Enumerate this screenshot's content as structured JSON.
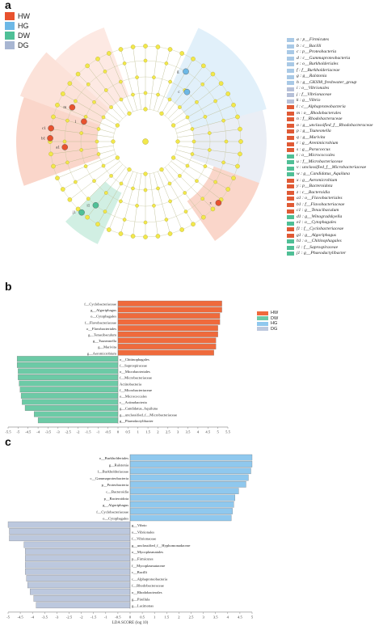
{
  "panels": {
    "a": "a",
    "b": "b",
    "c": "c"
  },
  "groups": [
    {
      "name": "HW",
      "color": "#e8522e"
    },
    {
      "name": "HG",
      "color": "#6db8e6"
    },
    {
      "name": "DW",
      "color": "#4fc097"
    },
    {
      "name": "DG",
      "color": "#a8b6d2"
    }
  ],
  "taxa_legend": [
    {
      "label": "a : p__Firmicutes",
      "color": "#a9c9e6"
    },
    {
      "label": "b : c__Bacilli",
      "color": "#a9c9e6"
    },
    {
      "label": "c : p__Proteobacteria",
      "color": "#a9c9e6"
    },
    {
      "label": "d : c__Gammaproteobacteria",
      "color": "#a9c9e6"
    },
    {
      "label": "e : o__Burkholderiales",
      "color": "#a9c9e6"
    },
    {
      "label": "f : f__Burkholderiaceae",
      "color": "#a9c9e6"
    },
    {
      "label": "g : g__Ralstonia",
      "color": "#a9c9e6"
    },
    {
      "label": "h : g__GKS98_freshwater_group",
      "color": "#a9c9e6"
    },
    {
      "label": "i : o__Vibrionales",
      "color": "#b6c0d8"
    },
    {
      "label": "j : f__Vibrionaceae",
      "color": "#b6c0d8"
    },
    {
      "label": "k : g__Vibrio",
      "color": "#b6c0d8"
    },
    {
      "label": "l : c__Alphaproteobacteria",
      "color": "#e05a35"
    },
    {
      "label": "m : o__Rhodobacterales",
      "color": "#e05a35"
    },
    {
      "label": "n : f__Rhodobacteraceae",
      "color": "#e05a35"
    },
    {
      "label": "o : g__unclassified_f__Rhodobacteraceae",
      "color": "#e05a35"
    },
    {
      "label": "p : g__Tsuneonella",
      "color": "#e05a35"
    },
    {
      "label": "q : g__Marivita",
      "color": "#e05a35"
    },
    {
      "label": "r : g__Arenimicrobium",
      "color": "#e05a35"
    },
    {
      "label": "s : g__Paracoccus",
      "color": "#e05a35"
    },
    {
      "label": "t : o__Micrococcales",
      "color": "#4fbf96"
    },
    {
      "label": "u : f__Microbacteriaceae",
      "color": "#4fbf96"
    },
    {
      "label": "v : unclassified_f__Microbacteriaceae",
      "color": "#4fbf96"
    },
    {
      "label": "w : g__Candidatus_Aquiluna",
      "color": "#4fbf96"
    },
    {
      "label": "x : g__Aeromicrobium",
      "color": "#e05a35"
    },
    {
      "label": "y : p__Bacteroidota",
      "color": "#e05a35"
    },
    {
      "label": "z : c__Bacteroidia",
      "color": "#e05a35"
    },
    {
      "label": "a1 : o__Flavobacteriales",
      "color": "#e05a35"
    },
    {
      "label": "b1 : f__Flavobacteriaceae",
      "color": "#e05a35"
    },
    {
      "label": "c1 : g__Tenacibaculum",
      "color": "#e05a35"
    },
    {
      "label": "d1 : g__Winogradskyella",
      "color": "#4fbf96"
    },
    {
      "label": "e1 : o__Cytophagales",
      "color": "#4fbf96"
    },
    {
      "label": "f1 : f__Cyclobacteriaceae",
      "color": "#e05a35"
    },
    {
      "label": "g1 : g__Algoriphagus",
      "color": "#e05a35"
    },
    {
      "label": "h1 : o__Chitinophagales",
      "color": "#4fbf96"
    },
    {
      "label": "i1 : f__Saprospiraceae",
      "color": "#4fbf96"
    },
    {
      "label": "j1 : g__Phaeodactylibacter",
      "color": "#4fbf96"
    }
  ],
  "cladogram": {
    "markers": [
      {
        "id": "a1",
        "group": "HW"
      },
      {
        "id": "b1",
        "group": "HW"
      },
      {
        "id": "c1",
        "group": "HW"
      },
      {
        "id": "l",
        "group": "HW"
      },
      {
        "id": "m",
        "group": "HW"
      },
      {
        "id": "x",
        "group": "HW"
      },
      {
        "id": "i1",
        "group": "DW"
      },
      {
        "id": "j1",
        "group": "DW"
      },
      {
        "id": "g",
        "group": "HG"
      },
      {
        "id": "c",
        "group": "HG"
      }
    ]
  },
  "panel_b": {
    "legend": [
      "HW",
      "DW",
      "HG",
      "DG"
    ],
    "chart_data": {
      "type": "bar",
      "xlabel": "",
      "xlim": [
        -5.5,
        5.5
      ],
      "ticks": [
        -5.5,
        -5,
        -4.5,
        -4,
        -3.5,
        -3,
        -2.5,
        -2,
        -1.5,
        -1,
        -0.5,
        0,
        0.5,
        1,
        1.5,
        2,
        2.5,
        3,
        3.5,
        4,
        4.5,
        5,
        5.5
      ],
      "series": [
        {
          "name": "HW",
          "color": "#ef6a3c",
          "labels": [
            "f__Cyclobacteriaceae",
            "g__Algoriphagus",
            "o__Cytophagales",
            "f__Flavobacteriaceae",
            "o__Flavobacteriales",
            "g__Tenacibaculum",
            "g__Tsuneonella",
            "g__Marivita",
            "g__Aeromicrobium"
          ],
          "values": [
            5.2,
            5.2,
            5.1,
            5.1,
            5.0,
            5.0,
            4.9,
            4.9,
            4.8
          ]
        },
        {
          "name": "DW",
          "color": "#6ccaa6",
          "labels": [
            "o__Chitinophagales",
            "f__Saprospiraceae",
            "o__Microbacteriales",
            "f__Microbacteriaceae",
            "Actinobacteria",
            "f__Microbacteriaceae",
            "o__Micrococcales",
            "c__Actinobacteria",
            "g__Candidatus_Aquiluna",
            "g__unclassified_f__Microbacteriaceae",
            "g__Phaeodactylibacter"
          ],
          "values": [
            -5.05,
            -5.05,
            -5.0,
            -5.0,
            -4.95,
            -4.9,
            -4.85,
            -4.8,
            -4.65,
            -4.2,
            -4.0
          ]
        }
      ]
    }
  },
  "panel_c": {
    "chart_data": {
      "type": "bar",
      "xlabel": "LDA SCORE (log 10)",
      "xlim": [
        -5,
        5
      ],
      "ticks": [
        -5,
        -4.5,
        -4,
        -3.5,
        -3,
        -2.5,
        -2,
        -1.5,
        -1,
        -0.5,
        0,
        0.5,
        1,
        1.5,
        2,
        2.5,
        3,
        3.5,
        4,
        4.5,
        5
      ],
      "series": [
        {
          "name": "HG",
          "color": "#8fc8ee",
          "labels": [
            "o__Burkholderiales",
            "g__Ralstonia",
            "f__Burkholderiaceae",
            "c__Gammaproteobacteria",
            "p__Proteobacteria",
            "c__Bacteroidia",
            "p__Bacteroidota",
            "g__Algoriphagus",
            "f__Cyclobacteriaceae",
            "o__Cytophagales"
          ],
          "values": [
            5.0,
            5.0,
            4.95,
            4.85,
            4.75,
            4.45,
            4.3,
            4.25,
            4.2,
            4.15
          ]
        },
        {
          "name": "DG",
          "color": "#bcc8de",
          "labels": [
            "g__Vibrio",
            "o__Vibrionales",
            "f__Vibrionaceae",
            "g__unclassified_f__Hyphomonadaceae",
            "o__Mycoplasmatales",
            "p__Firmicutes",
            "f__Mycoplasmataceae",
            "c__Bacilli",
            "c__Alphaproteobacteria",
            "f__Rhodobacteraceae",
            "o__Rhodobacterales",
            "g__Pirellula",
            "g__Lacimonas"
          ],
          "values": [
            -5.0,
            -4.95,
            -4.95,
            -4.35,
            -4.3,
            -4.3,
            -4.3,
            -4.3,
            -4.25,
            -4.2,
            -4.1,
            -3.95,
            -3.85
          ]
        }
      ]
    }
  }
}
